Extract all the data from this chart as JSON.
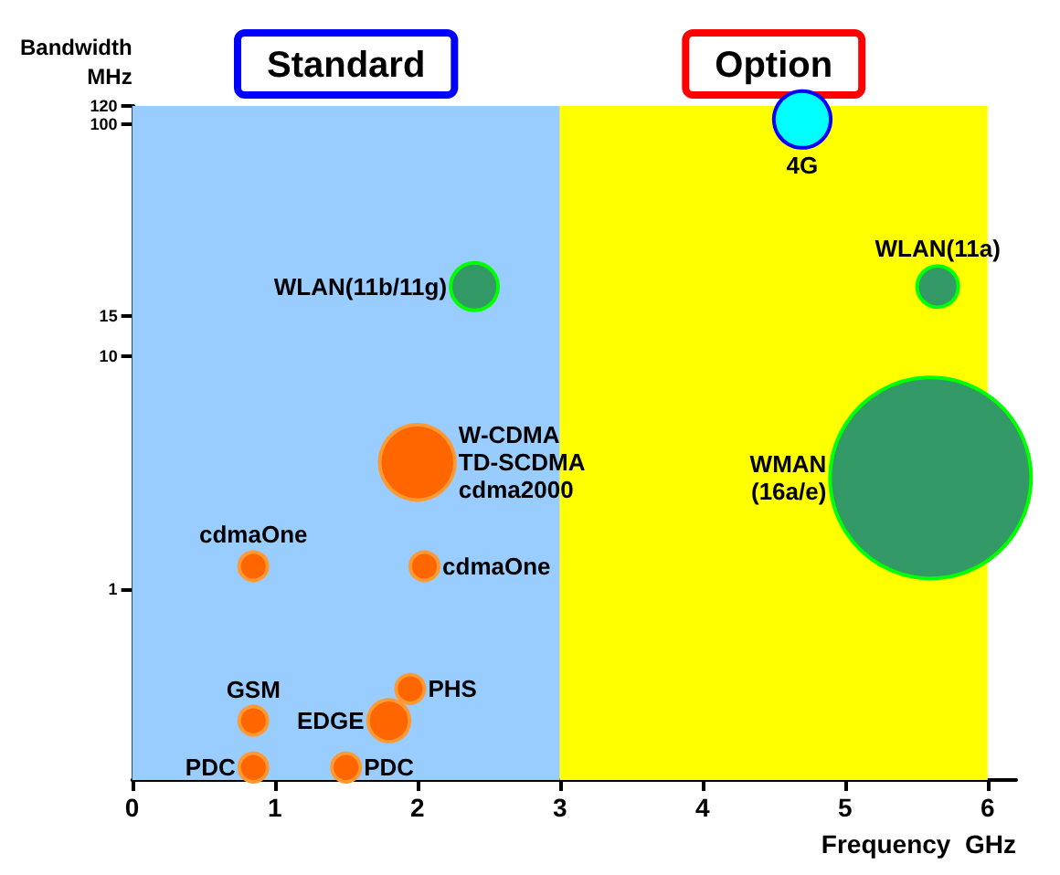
{
  "chart_data": {
    "type": "bubble",
    "xlabel": "Frequency  GHz",
    "ylabel": "Bandwidth\nMHz",
    "xlim": [
      0,
      6.2
    ],
    "xticks": [
      0,
      1,
      2,
      3,
      4,
      5,
      6
    ],
    "ylim": [
      0.15,
      120
    ],
    "yticks": [
      1,
      10,
      15,
      100,
      120
    ],
    "log": "y",
    "grid": false,
    "legend": false,
    "marker": "circle",
    "bands": [
      {
        "axis": "x",
        "from": 0,
        "to": 3,
        "label": "Standard",
        "color": "#99ccff"
      },
      {
        "axis": "x",
        "from": 3,
        "to": 6,
        "label": "Option",
        "color": "#ffff00"
      }
    ],
    "series": [
      {
        "name": "4G",
        "color": "#00ffff",
        "x": [
          4.7
        ],
        "values": [
          105
        ],
        "sizes": [
          0.08
        ]
      },
      {
        "name": "WLAN(11b/11g)",
        "color": "#339966",
        "x": [
          2.4
        ],
        "values": [
          20
        ],
        "sizes": [
          0.056
        ]
      },
      {
        "name": "WLAN(11a)",
        "color": "#339966",
        "x": [
          5.65
        ],
        "values": [
          20
        ],
        "sizes": [
          0.042
        ]
      },
      {
        "name": "WMAN\n(16a/e)",
        "color": "#339966",
        "x": [
          5.6
        ],
        "values": [
          3
        ],
        "sizes": [
          1
        ]
      },
      {
        "name": "W-CDMA\nTD-SCDMA\ncdma2000",
        "color": "#ff6600",
        "x": [
          2.0
        ],
        "values": [
          3.5
        ],
        "sizes": [
          0.14
        ]
      },
      {
        "name": "cdmaOne",
        "color": "#ff6600",
        "x": [
          0.85
        ],
        "values": [
          1.25
        ],
        "sizes": [
          0.02
        ]
      },
      {
        "name": "cdmaOne",
        "color": "#ff6600",
        "x": [
          2.05
        ],
        "values": [
          1.25
        ],
        "sizes": [
          0.02
        ]
      },
      {
        "name": "GSM",
        "color": "#ff6600",
        "x": [
          0.85
        ],
        "values": [
          0.27
        ],
        "sizes": [
          0.02
        ]
      },
      {
        "name": "EDGE",
        "color": "#ff6600",
        "x": [
          1.8
        ],
        "values": [
          0.27
        ],
        "sizes": [
          0.043
        ]
      },
      {
        "name": "PHS",
        "color": "#ff6600",
        "x": [
          1.95
        ],
        "values": [
          0.37
        ],
        "sizes": [
          0.02
        ]
      },
      {
        "name": "PDC",
        "color": "#ff6600",
        "x": [
          0.85
        ],
        "values": [
          0.17
        ],
        "sizes": [
          0.02
        ]
      },
      {
        "name": "PDC",
        "color": "#ff6600",
        "x": [
          1.5
        ],
        "values": [
          0.17
        ],
        "sizes": [
          0.02
        ]
      }
    ]
  }
}
